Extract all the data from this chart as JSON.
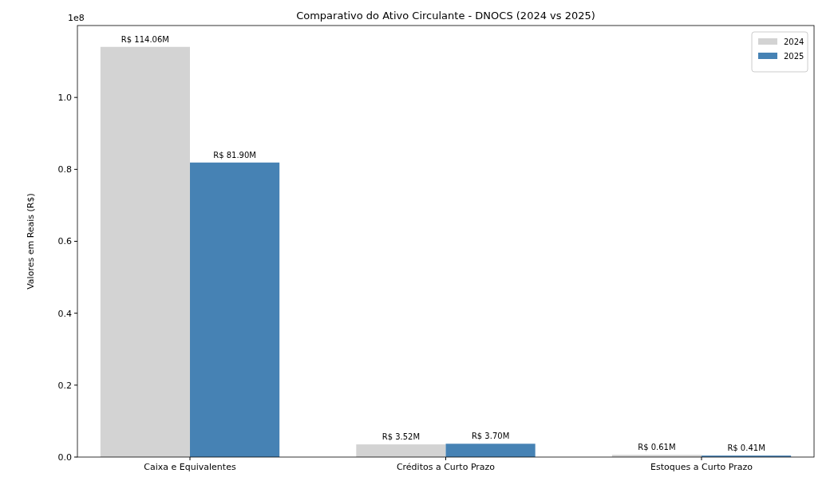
{
  "chart_data": {
    "type": "bar",
    "title": "Comparativo do Ativo Circulante - DNOCS (2024 vs 2025)",
    "ylabel": "Valores em Reais (R$)",
    "annotations": [
      "1e8"
    ],
    "categories": [
      "Caixa e Equivalentes",
      "Créditos a Curto Prazo",
      "Estoques a Curto Prazo"
    ],
    "series": [
      {
        "name": "2024",
        "color": "#d3d3d3",
        "values": [
          1.1406,
          0.0352,
          0.0061
        ],
        "value_labels": [
          "R$ 114.06M",
          "R$ 3.52M",
          "R$ 0.61M"
        ]
      },
      {
        "name": "2025",
        "color": "#4682b4",
        "values": [
          0.819,
          0.037,
          0.0041
        ],
        "value_labels": [
          "R$ 81.90M",
          "R$ 3.70M",
          "R$ 0.41M"
        ]
      }
    ],
    "ylim": [
      0,
      1.2
    ],
    "yticks": [
      {
        "value": 0,
        "label": "0.0"
      },
      0.2,
      0.4,
      0.6,
      0.8,
      {
        "value": 1,
        "label": "1.0"
      }
    ],
    "legend": "top right"
  }
}
